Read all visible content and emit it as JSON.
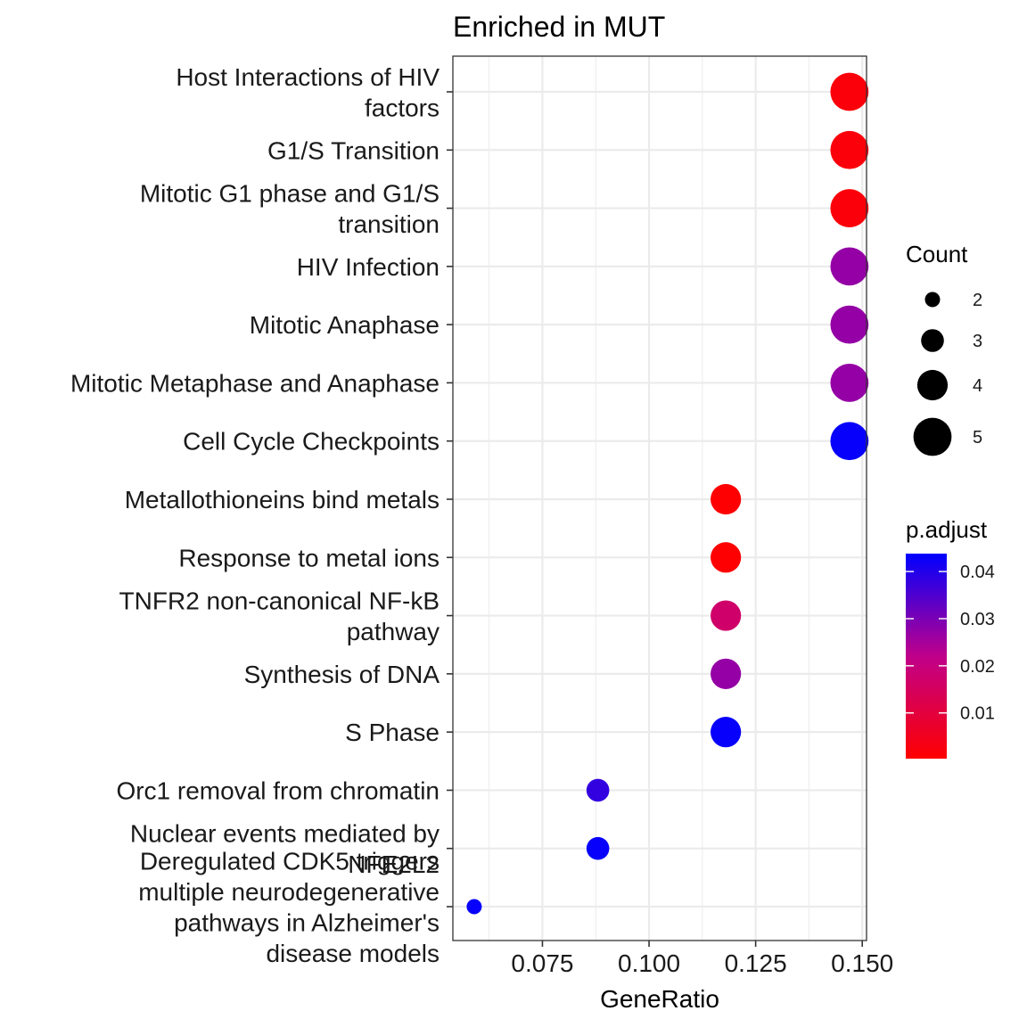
{
  "chart_data": {
    "type": "scatter",
    "title": "Enriched in MUT",
    "xlabel": "GeneRatio",
    "ylabel": "",
    "xlim": [
      0.054,
      0.151
    ],
    "x_ticks": [
      0.075,
      0.1,
      0.125,
      0.15
    ],
    "x_tick_labels": [
      "0.075",
      "0.100",
      "0.125",
      "0.150"
    ],
    "grid": true,
    "legend_position": "right",
    "categories": [
      {
        "lines": [
          "Host Interactions of HIV",
          "factors"
        ],
        "x": 0.147,
        "count": 5,
        "p_adjust": 0.0018
      },
      {
        "lines": [
          "G1/S Transition"
        ],
        "x": 0.147,
        "count": 5,
        "p_adjust": 0.0018
      },
      {
        "lines": [
          "Mitotic G1 phase and G1/S",
          "transition"
        ],
        "x": 0.147,
        "count": 5,
        "p_adjust": 0.0018
      },
      {
        "lines": [
          "HIV Infection"
        ],
        "x": 0.147,
        "count": 5,
        "p_adjust": 0.027
      },
      {
        "lines": [
          "Mitotic Anaphase"
        ],
        "x": 0.147,
        "count": 5,
        "p_adjust": 0.027
      },
      {
        "lines": [
          "Mitotic Metaphase and Anaphase"
        ],
        "x": 0.147,
        "count": 5,
        "p_adjust": 0.027
      },
      {
        "lines": [
          "Cell Cycle Checkpoints"
        ],
        "x": 0.147,
        "count": 5,
        "p_adjust": 0.043
      },
      {
        "lines": [
          "Metallothioneins bind metals"
        ],
        "x": 0.118,
        "count": 4,
        "p_adjust": 0.0005
      },
      {
        "lines": [
          "Response to metal ions"
        ],
        "x": 0.118,
        "count": 4,
        "p_adjust": 0.0005
      },
      {
        "lines": [
          "TNFR2 non-canonical NF-kB",
          "pathway"
        ],
        "x": 0.118,
        "count": 4,
        "p_adjust": 0.017
      },
      {
        "lines": [
          "Synthesis of DNA"
        ],
        "x": 0.118,
        "count": 4,
        "p_adjust": 0.027
      },
      {
        "lines": [
          "S Phase"
        ],
        "x": 0.118,
        "count": 4,
        "p_adjust": 0.043
      },
      {
        "lines": [
          "Orc1 removal from chromatin"
        ],
        "x": 0.088,
        "count": 3,
        "p_adjust": 0.038
      },
      {
        "lines": [
          "Nuclear events mediated by",
          "NFE2L2"
        ],
        "x": 0.088,
        "count": 3,
        "p_adjust": 0.043
      },
      {
        "lines": [
          "Deregulated CDK5 triggers",
          "multiple neurodegenerative",
          "pathways in Alzheimer's",
          "disease models"
        ],
        "x": 0.059,
        "count": 2,
        "p_adjust": 0.043
      }
    ],
    "size_legend": {
      "title": "Count",
      "values": [
        2,
        3,
        4,
        5
      ],
      "labels": [
        "2",
        "3",
        "4",
        "5"
      ]
    },
    "color_legend": {
      "title": "p.adjust",
      "min": 0.0003,
      "max": 0.0438,
      "ticks": [
        0.04,
        0.03,
        0.02,
        0.01
      ],
      "tick_labels": [
        "0.04",
        "0.03",
        "0.02",
        "0.01"
      ],
      "low_color": "#ff0000",
      "high_color": "#0000ff"
    },
    "colors": {
      "grid": "#ebebeb",
      "panel_border": "#333333",
      "point_low": "#ff0000",
      "point_high": "#0000ff"
    }
  }
}
